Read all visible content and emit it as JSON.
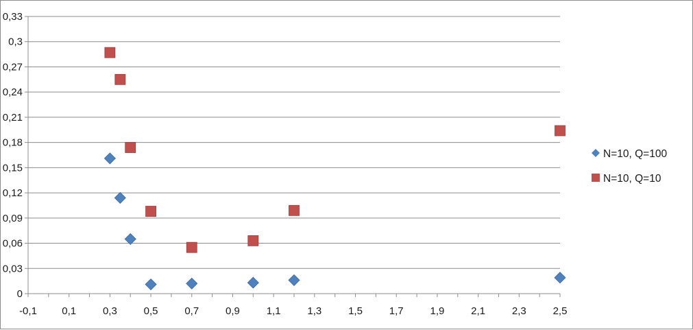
{
  "chart_data": {
    "type": "scatter",
    "title": "",
    "xlabel": "",
    "ylabel": "",
    "xlim": [
      -0.1,
      2.5
    ],
    "ylim": [
      0,
      0.33
    ],
    "x_ticks": [
      "-0,1",
      "0,1",
      "0,3",
      "0,5",
      "0,7",
      "0,9",
      "1,1",
      "1,3",
      "1,5",
      "1,7",
      "1,9",
      "2,1",
      "2,3",
      "2,5"
    ],
    "x_tick_values": [
      -0.1,
      0.1,
      0.3,
      0.5,
      0.7,
      0.9,
      1.1,
      1.3,
      1.5,
      1.7,
      1.9,
      2.1,
      2.3,
      2.5
    ],
    "y_ticks": [
      "0",
      "0,03",
      "0,06",
      "0,09",
      "0,12",
      "0,15",
      "0,18",
      "0,21",
      "0,24",
      "0,27",
      "0,3",
      "0,33"
    ],
    "y_tick_values": [
      0,
      0.03,
      0.06,
      0.09,
      0.12,
      0.15,
      0.18,
      0.21,
      0.24,
      0.27,
      0.3,
      0.33
    ],
    "grid": "horizontal",
    "legend_position": "right",
    "series": [
      {
        "name": "N=10, Q=100",
        "marker": "diamond",
        "color": "#4f81bd",
        "points": [
          [
            0.3,
            0.161
          ],
          [
            0.35,
            0.114
          ],
          [
            0.4,
            0.065
          ],
          [
            0.5,
            0.011
          ],
          [
            0.7,
            0.012
          ],
          [
            1.0,
            0.013
          ],
          [
            1.2,
            0.016
          ],
          [
            2.5,
            0.019
          ]
        ]
      },
      {
        "name": "N=10, Q=10",
        "marker": "square",
        "color": "#c0504d",
        "points": [
          [
            0.3,
            0.287
          ],
          [
            0.35,
            0.255
          ],
          [
            0.4,
            0.174
          ],
          [
            0.5,
            0.098
          ],
          [
            0.7,
            0.055
          ],
          [
            1.0,
            0.063
          ],
          [
            1.2,
            0.099
          ],
          [
            2.5,
            0.194
          ]
        ]
      }
    ]
  }
}
